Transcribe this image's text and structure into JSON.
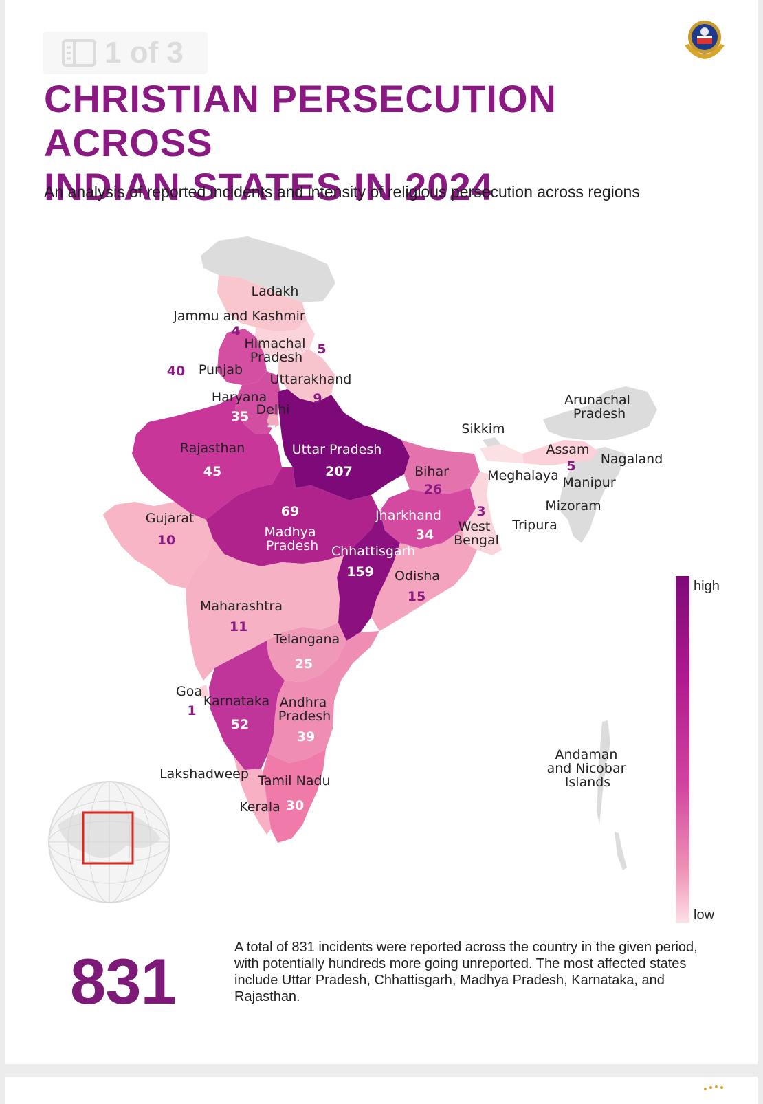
{
  "pager": {
    "label": "1 of 3"
  },
  "title_line1": "CHRISTIAN PERSECUTION ACROSS",
  "title_line2": "INDIAN STATES IN 2024",
  "subtitle": "An analysis of reported incidents and intensity of religious persecution across regions",
  "legend": {
    "high": "high",
    "low": "low",
    "high_color": "#7d0a78",
    "low_color": "#fde0e6"
  },
  "total": "831",
  "summary": "A total of 831 incidents were reported across the country in the given period, with potentially hundreds more going unreported. The most affected states include Uttar Pradesh, Chhattisgarh, Madhya Pradesh, Karnataka, and Rajasthan.",
  "colors": {
    "no_data": "#dcdcdc",
    "title": "#8a1a82",
    "label_on_light": "#8a1a82",
    "label_on_dark": "#ffffff"
  },
  "chart_data": {
    "type": "choropleth",
    "regions": [
      {
        "name": "Ladakh",
        "value": null
      },
      {
        "name": "Jammu and Kashmir",
        "value": "4"
      },
      {
        "name": "Himachal Pradesh",
        "value": "5"
      },
      {
        "name": "Punjab",
        "value": "40"
      },
      {
        "name": "Uttarakhand",
        "value": "9"
      },
      {
        "name": "Haryana",
        "value": "35"
      },
      {
        "name": "Delhi",
        "value": "7"
      },
      {
        "name": "Rajasthan",
        "value": "45"
      },
      {
        "name": "Uttar Pradesh",
        "value": "207"
      },
      {
        "name": "Bihar",
        "value": "26"
      },
      {
        "name": "Gujarat",
        "value": "10"
      },
      {
        "name": "Madhya Pradesh",
        "value": "69"
      },
      {
        "name": "Jharkhand",
        "value": "34"
      },
      {
        "name": "West Bengal",
        "value": "3"
      },
      {
        "name": "Chhattisgarh",
        "value": "159"
      },
      {
        "name": "Odisha",
        "value": "15"
      },
      {
        "name": "Maharashtra",
        "value": "11"
      },
      {
        "name": "Telangana",
        "value": "25"
      },
      {
        "name": "Goa",
        "value": "1"
      },
      {
        "name": "Karnataka",
        "value": "52"
      },
      {
        "name": "Andhra Pradesh",
        "value": "39"
      },
      {
        "name": "Tamil Nadu",
        "value": null
      },
      {
        "name": "Kerala",
        "value": "30"
      },
      {
        "name": "Lakshadweep",
        "value": null
      },
      {
        "name": "Sikkim",
        "value": null
      },
      {
        "name": "Arunachal Pradesh",
        "value": null
      },
      {
        "name": "Assam",
        "value": "5"
      },
      {
        "name": "Nagaland",
        "value": null
      },
      {
        "name": "Meghalaya",
        "value": null
      },
      {
        "name": "Manipur",
        "value": null
      },
      {
        "name": "Mizoram",
        "value": null
      },
      {
        "name": "Tripura",
        "value": null
      },
      {
        "name": "Andaman and Nicobar Islands",
        "value": null
      }
    ]
  }
}
